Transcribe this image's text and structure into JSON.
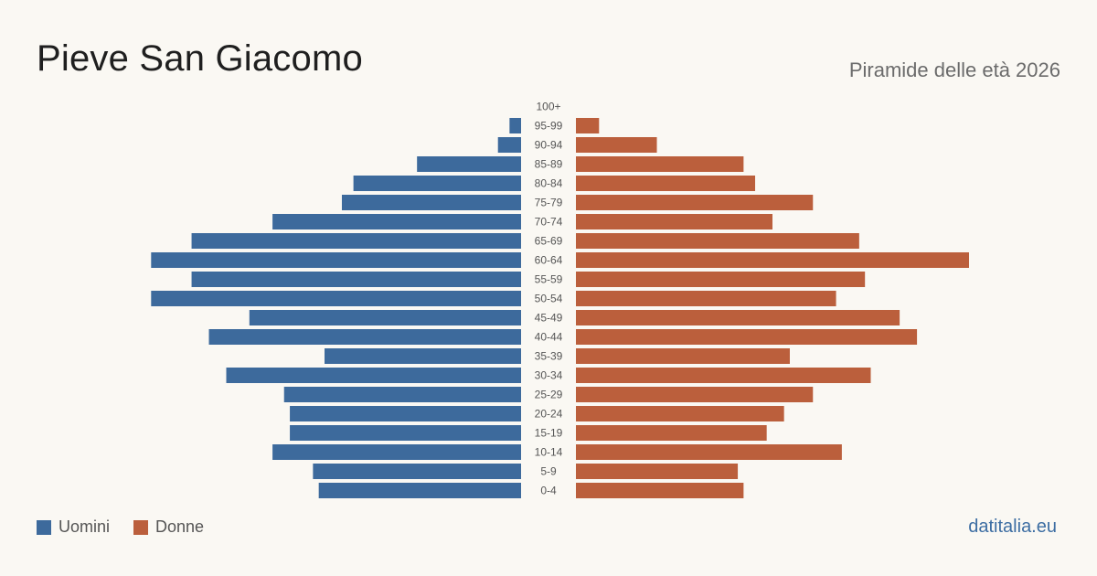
{
  "header": {
    "title": "Pieve San Giacomo",
    "subtitle": "Piramide delle età 2026"
  },
  "legend": {
    "men_label": "Uomini",
    "women_label": "Donne"
  },
  "source": "datitalia.eu",
  "colors": {
    "men": "#3d6a9c",
    "women": "#bb5f3c"
  },
  "chart_data": {
    "type": "bar",
    "orientation": "horizontal-pyramid",
    "categories": [
      "100+",
      "95-99",
      "90-94",
      "85-89",
      "80-84",
      "75-79",
      "70-74",
      "65-69",
      "60-64",
      "55-59",
      "50-54",
      "45-49",
      "40-44",
      "35-39",
      "30-34",
      "25-29",
      "20-24",
      "15-19",
      "10-14",
      "5-9",
      "0-4"
    ],
    "series": [
      {
        "name": "Uomini",
        "values": [
          0,
          2,
          4,
          18,
          29,
          31,
          43,
          57,
          64,
          57,
          64,
          47,
          54,
          34,
          51,
          41,
          40,
          40,
          43,
          36,
          35
        ]
      },
      {
        "name": "Donne",
        "values": [
          0,
          4,
          14,
          29,
          31,
          41,
          34,
          49,
          68,
          50,
          45,
          56,
          59,
          37,
          51,
          41,
          36,
          33,
          46,
          28,
          29
        ]
      }
    ],
    "grid": false,
    "legend_position": "bottom-left"
  }
}
